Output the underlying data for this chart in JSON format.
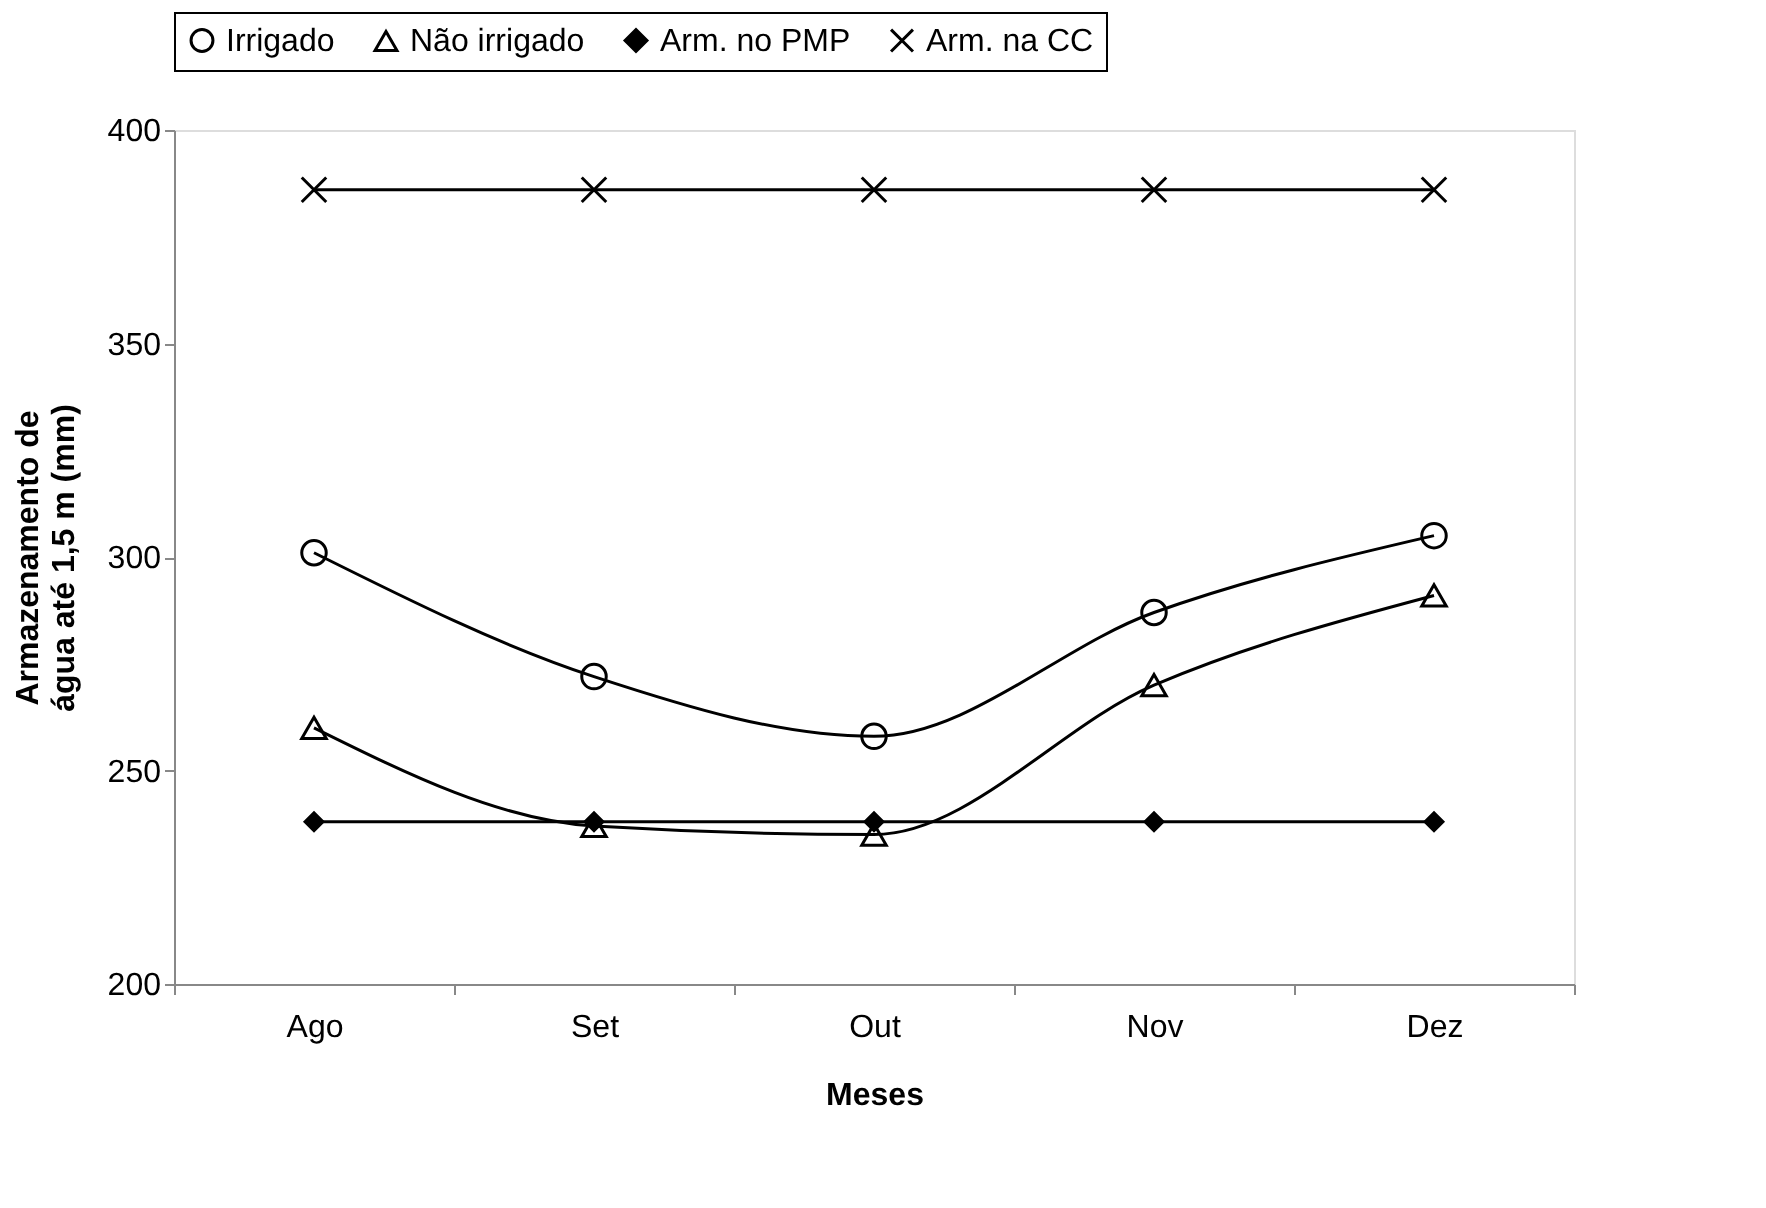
{
  "chart_data": {
    "type": "line",
    "xlabel": "Meses",
    "ylabel": "Armazenamento de água até 1,5 m (mm)",
    "categories": [
      "Ago",
      "Set",
      "Out",
      "Nov",
      "Dez"
    ],
    "series": [
      {
        "name": "Irrigado",
        "color": "#000000",
        "marker": "circle",
        "values": [
          301,
          272,
          258,
          287,
          305
        ]
      },
      {
        "name": "Não irrigado",
        "color": "#000000",
        "marker": "triangle",
        "values": [
          260,
          237,
          235,
          270,
          291
        ]
      },
      {
        "name": "Arm. no PMP",
        "color": "#000000",
        "marker": "diamond",
        "values": [
          238,
          238,
          238,
          238,
          238
        ]
      },
      {
        "name": "Arm. na CC",
        "color": "#000000",
        "marker": "cross",
        "values": [
          386,
          386,
          386,
          386,
          386
        ]
      }
    ],
    "ylim": [
      200,
      400
    ],
    "yticks": [
      200,
      250,
      300,
      350,
      400
    ],
    "grid": false,
    "legend": "top",
    "line_style": "solid"
  }
}
